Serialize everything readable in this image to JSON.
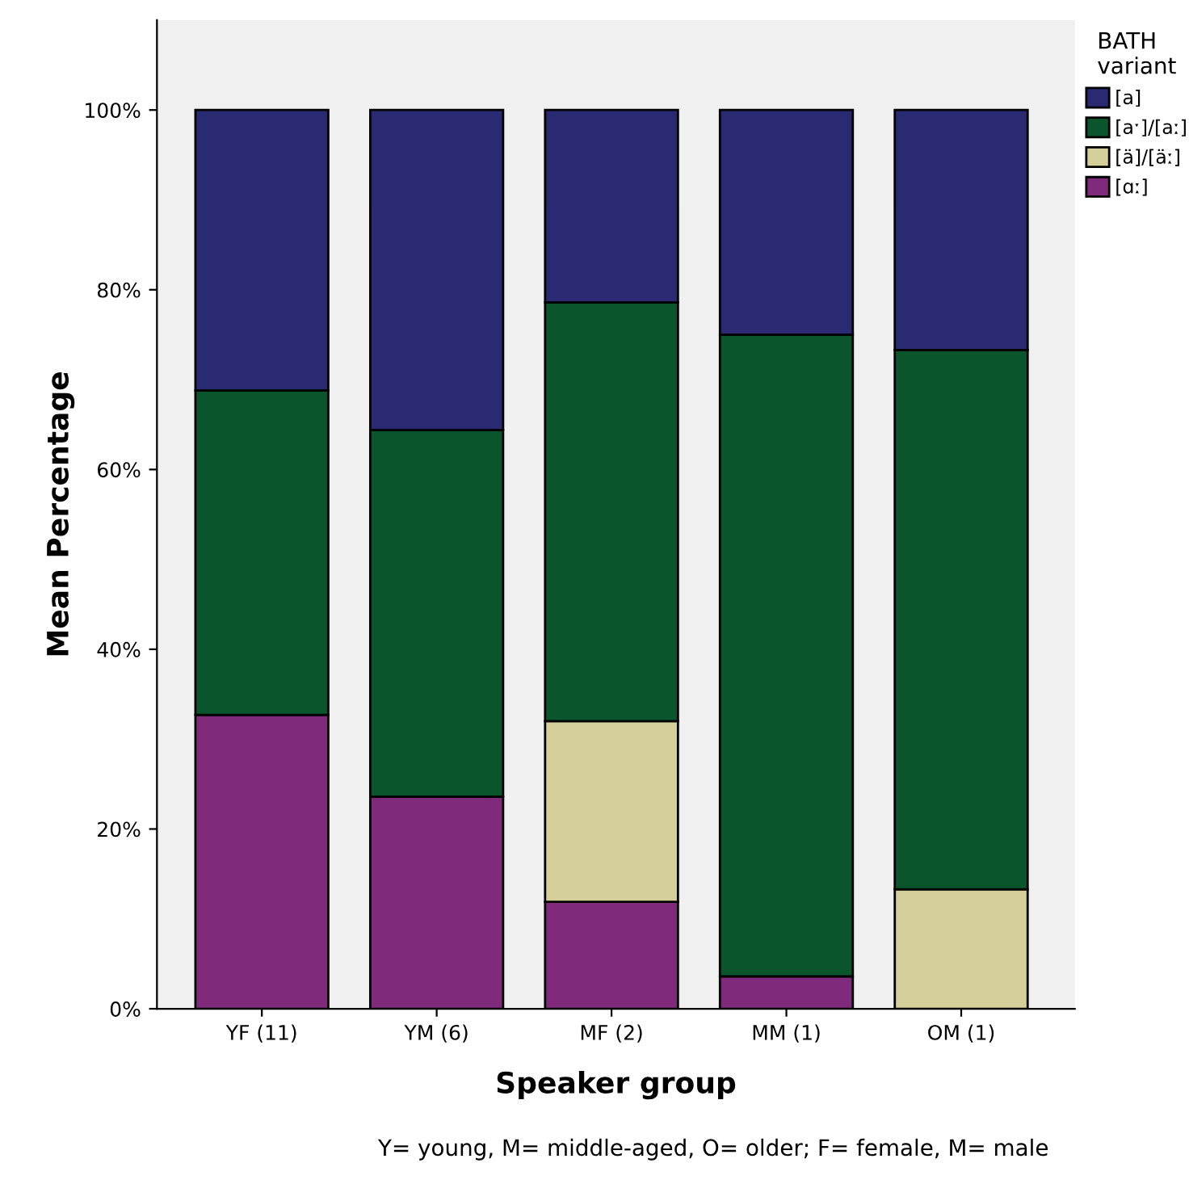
{
  "chart_data": {
    "type": "bar",
    "stacked": true,
    "xlabel": "Speaker group",
    "ylabel": "Mean Percentage",
    "legend_title": "BATH\nvariant",
    "legend": "right",
    "categories": [
      "YF (11)",
      "YM (6)",
      "MF (2)",
      "MM (1)",
      "OM (1)"
    ],
    "series": [
      {
        "name": "[ɑː]",
        "color": "#7f2a7b",
        "values": [
          32.7,
          23.6,
          11.9,
          3.6,
          0
        ]
      },
      {
        "name": "[ä]/[äː]",
        "color": "#d5cf99",
        "values": [
          0,
          0,
          20.1,
          0,
          13.3
        ]
      },
      {
        "name": "[aˑ]/[aː]",
        "color": "#0b552d",
        "values": [
          36.1,
          40.8,
          46.6,
          71.4,
          60
        ]
      },
      {
        "name": "[a]",
        "color": "#292a72",
        "values": [
          31.2,
          35.6,
          21.4,
          25,
          26.7
        ]
      }
    ],
    "ylim": [
      0,
      110
    ],
    "yticks": [
      {
        "value": 0,
        "label": "0%"
      },
      {
        "value": 20,
        "label": "20%"
      },
      {
        "value": 40,
        "label": "40%"
      },
      {
        "value": 60,
        "label": "60%"
      },
      {
        "value": 80,
        "label": "80%"
      },
      {
        "value": 100,
        "label": "100%"
      }
    ],
    "grid": false,
    "annotations": [
      "Y= young, M= middle-aged, O= older; F= female, M= male"
    ]
  }
}
